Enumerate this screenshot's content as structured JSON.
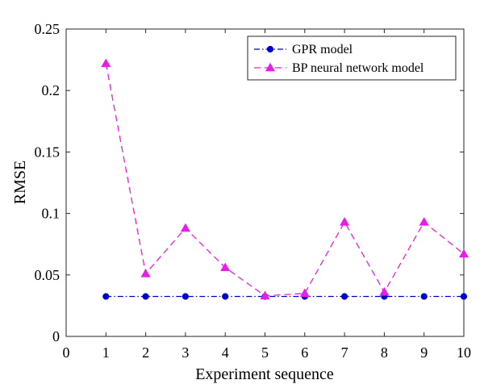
{
  "chart_data": {
    "type": "line",
    "title": "",
    "xlabel": "Experiment sequence",
    "ylabel": "RMSE",
    "xlim": [
      0,
      10
    ],
    "ylim": [
      0,
      0.25
    ],
    "xticks": [
      0,
      1,
      2,
      3,
      4,
      5,
      6,
      7,
      8,
      9,
      10
    ],
    "xtick_labels": [
      "0",
      "1",
      "2",
      "3",
      "4",
      "5",
      "6",
      "7",
      "8",
      "9",
      "10"
    ],
    "yticks": [
      0,
      0.05,
      0.1,
      0.15,
      0.2,
      0.25
    ],
    "ytick_labels": [
      "0",
      "0.05",
      "0.1",
      "0.15",
      "0.2",
      "0.25"
    ],
    "grid": false,
    "legend_position": "top-right",
    "x": [
      1,
      2,
      3,
      4,
      5,
      6,
      7,
      8,
      9,
      10
    ],
    "series": [
      {
        "name": "GPR model",
        "values": [
          0.0325,
          0.0325,
          0.0325,
          0.0325,
          0.0325,
          0.0325,
          0.0325,
          0.0325,
          0.0325,
          0.0325
        ],
        "color": "#0000cc",
        "line_style": "dash-dot",
        "marker": "circle"
      },
      {
        "name": "BP neural network model",
        "values": [
          0.222,
          0.051,
          0.088,
          0.056,
          0.033,
          0.035,
          0.093,
          0.036,
          0.093,
          0.067
        ],
        "color": "#e81de8",
        "line_style": "dashed",
        "marker": "triangle"
      }
    ]
  }
}
